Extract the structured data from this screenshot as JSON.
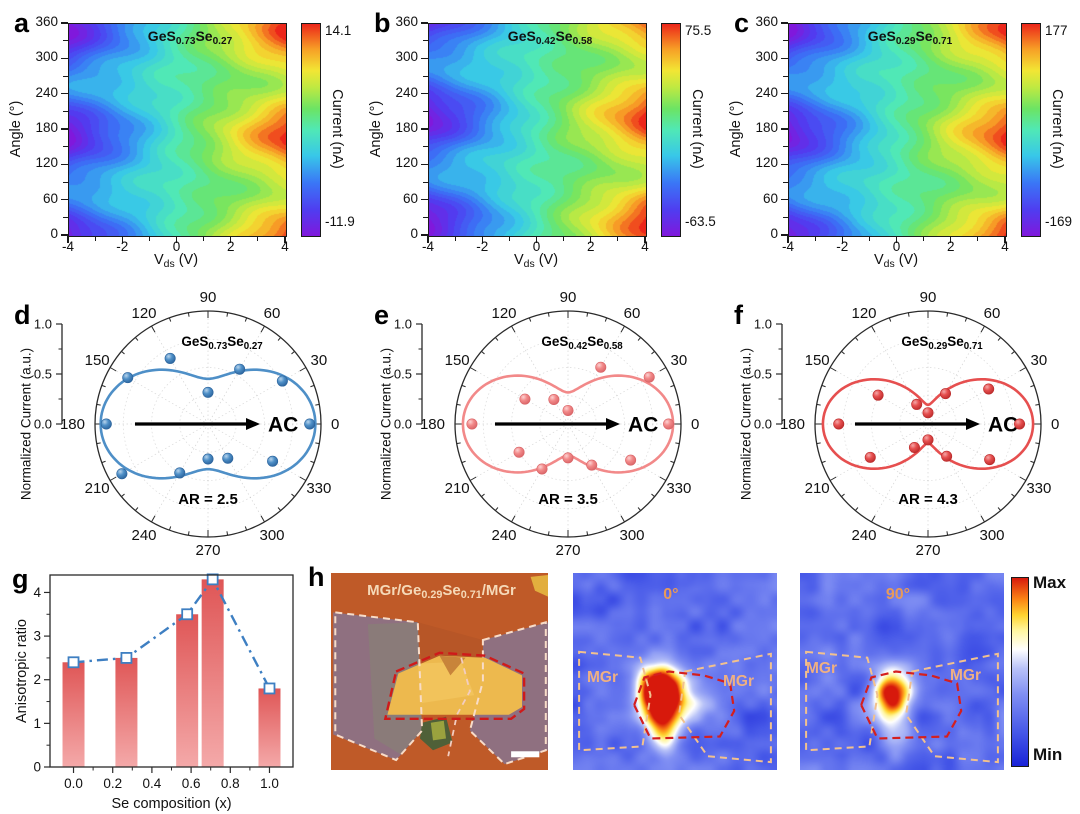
{
  "chart_data": [
    {
      "panel": "a",
      "type": "heatmap",
      "title_text": "GeS0.73Se0.27",
      "title_parts": [
        {
          "t": "GeS"
        },
        {
          "t": "0.73",
          "sub": true
        },
        {
          "t": "Se"
        },
        {
          "t": "0.27",
          "sub": true
        }
      ],
      "xlabel_parts": [
        {
          "t": "V"
        },
        {
          "t": "ds",
          "sub": true
        },
        {
          "t": " (V)"
        }
      ],
      "ylabel": "Angle (°)",
      "x_range": [
        -4,
        4
      ],
      "y_range": [
        0,
        360
      ],
      "x_ticks": [
        "-4",
        "-2",
        "0",
        "2",
        "4"
      ],
      "y_ticks": [
        "0",
        "60",
        "120",
        "180",
        "240",
        "300",
        "360"
      ],
      "colorbar": {
        "label": "Current (nA)",
        "max": "14.1",
        "min": "-11.9"
      },
      "lobe_phase_deg": -10
    },
    {
      "panel": "b",
      "type": "heatmap",
      "title_text": "GeS0.42Se0.58",
      "title_parts": [
        {
          "t": "GeS"
        },
        {
          "t": "0.42",
          "sub": true
        },
        {
          "t": "Se"
        },
        {
          "t": "0.58",
          "sub": true
        }
      ],
      "xlabel_parts": [
        {
          "t": "V"
        },
        {
          "t": "ds",
          "sub": true
        },
        {
          "t": " (V)"
        }
      ],
      "ylabel": "Angle (°)",
      "x_range": [
        -4,
        4
      ],
      "y_range": [
        0,
        360
      ],
      "x_ticks": [
        "-4",
        "-2",
        "0",
        "2",
        "4"
      ],
      "y_ticks": [
        "0",
        "60",
        "120",
        "180",
        "240",
        "300",
        "360"
      ],
      "colorbar": {
        "label": "Current (nA)",
        "max": "75.5",
        "min": "-63.5"
      },
      "lobe_phase_deg": 22
    },
    {
      "panel": "c",
      "type": "heatmap",
      "title_text": "GeS0.29Se0.71",
      "title_parts": [
        {
          "t": "GeS"
        },
        {
          "t": "0.29",
          "sub": true
        },
        {
          "t": "Se"
        },
        {
          "t": "0.71",
          "sub": true
        }
      ],
      "xlabel_parts": [
        {
          "t": "V"
        },
        {
          "t": "ds",
          "sub": true
        },
        {
          "t": " (V)"
        }
      ],
      "ylabel": "Angle (°)",
      "x_range": [
        -4,
        4
      ],
      "y_range": [
        0,
        360
      ],
      "x_ticks": [
        "-4",
        "-2",
        "0",
        "2",
        "4"
      ],
      "y_ticks": [
        "0",
        "60",
        "120",
        "180",
        "240",
        "300",
        "360"
      ],
      "colorbar": {
        "label": "Current (nA)",
        "max": "177",
        "min": "-169"
      },
      "lobe_phase_deg": -6
    },
    {
      "panel": "d",
      "type": "polar",
      "title_text": "GeS0.73Se0.27",
      "title_parts": [
        {
          "t": "GeS"
        },
        {
          "t": "0.73",
          "sub": true
        },
        {
          "t": "Se"
        },
        {
          "t": "0.27",
          "sub": true
        }
      ],
      "ar_label": "AR = 2.5",
      "ac_label": "AC",
      "r_axis_label": "Normalized Current (a.u.)",
      "r_tick_labels": [
        "0.0",
        "0.5",
        "1.0"
      ],
      "angle_tick_labels": [
        "0",
        "30",
        "60",
        "90",
        "120",
        "150",
        "180",
        "210",
        "240",
        "270",
        "300",
        "330"
      ],
      "color": "#4e8fc7",
      "color_dark": "#2b639c",
      "color_light": "#b8d4ec",
      "fit": {
        "r_min": 0.4,
        "r_max": 0.95
      },
      "points": [
        [
          0,
          0.9
        ],
        [
          30,
          0.76
        ],
        [
          60,
          0.56
        ],
        [
          90,
          0.28
        ],
        [
          120,
          0.67
        ],
        [
          150,
          0.82
        ],
        [
          180,
          0.9
        ],
        [
          210,
          0.88
        ],
        [
          240,
          0.5
        ],
        [
          270,
          0.31
        ],
        [
          300,
          0.35
        ],
        [
          330,
          0.66
        ]
      ]
    },
    {
      "panel": "e",
      "type": "polar",
      "title_text": "GeS0.42Se0.58",
      "title_parts": [
        {
          "t": "GeS"
        },
        {
          "t": "0.42",
          "sub": true
        },
        {
          "t": "Se"
        },
        {
          "t": "0.58",
          "sub": true
        }
      ],
      "ar_label": "AR = 3.5",
      "ac_label": "AC",
      "r_axis_label": "Normalized Current (a.u.)",
      "r_tick_labels": [
        "0.0",
        "0.5",
        "1.0"
      ],
      "angle_tick_labels": [
        "0",
        "30",
        "60",
        "90",
        "120",
        "150",
        "180",
        "210",
        "240",
        "270",
        "300",
        "330"
      ],
      "color": "#f28989",
      "color_dark": "#d96467",
      "color_light": "#fcd2d2",
      "fit": {
        "r_min": 0.28,
        "r_max": 0.93
      },
      "points": [
        [
          0,
          0.89
        ],
        [
          30,
          0.83
        ],
        [
          60,
          0.58
        ],
        [
          90,
          0.12
        ],
        [
          120,
          0.25
        ],
        [
          150,
          0.44
        ],
        [
          180,
          0.85
        ],
        [
          210,
          0.5
        ],
        [
          240,
          0.46
        ],
        [
          270,
          0.3
        ],
        [
          300,
          0.42
        ],
        [
          330,
          0.64
        ]
      ]
    },
    {
      "panel": "f",
      "type": "polar",
      "title_text": "GeS0.29Se0.71",
      "title_parts": [
        {
          "t": "GeS"
        },
        {
          "t": "0.29",
          "sub": true
        },
        {
          "t": "Se"
        },
        {
          "t": "0.71",
          "sub": true
        }
      ],
      "ar_label": "AR = 4.3",
      "ac_label": "AC",
      "r_axis_label": "Normalized Current (a.u.)",
      "r_tick_labels": [
        "0.0",
        "0.5",
        "1.0"
      ],
      "angle_tick_labels": [
        "0",
        "30",
        "60",
        "90",
        "120",
        "150",
        "180",
        "210",
        "240",
        "270",
        "300",
        "330"
      ],
      "color": "#e64f4f",
      "color_dark": "#bb2b2b",
      "color_light": "#f4a8a8",
      "fit": {
        "r_min": 0.17,
        "r_max": 0.93
      },
      "points": [
        [
          0,
          0.81
        ],
        [
          30,
          0.62
        ],
        [
          60,
          0.31
        ],
        [
          90,
          0.1
        ],
        [
          120,
          0.2
        ],
        [
          150,
          0.51
        ],
        [
          180,
          0.79
        ],
        [
          210,
          0.59
        ],
        [
          240,
          0.24
        ],
        [
          270,
          0.14
        ],
        [
          300,
          0.33
        ],
        [
          330,
          0.63
        ]
      ]
    },
    {
      "panel": "g",
      "type": "bar",
      "xlabel": "Se composition (x)",
      "ylabel": "Anisotropic ratio",
      "categories": [
        0.0,
        0.27,
        0.58,
        0.71,
        1.0
      ],
      "values": [
        2.4,
        2.5,
        3.5,
        4.3,
        1.8
      ],
      "line_values": [
        2.4,
        2.5,
        3.5,
        4.3,
        1.8
      ],
      "x_ticks": [
        "0.0",
        "0.2",
        "0.4",
        "0.6",
        "0.8",
        "1.0"
      ],
      "y_ticks": [
        "0",
        "1",
        "2",
        "3",
        "4"
      ],
      "xlim": [
        -0.12,
        1.12
      ],
      "ylim": [
        0,
        4.4
      ],
      "bar_color_top": "#df5656",
      "bar_color_bottom": "#f4a9a9",
      "line_color": "#3e7fc2",
      "line_style": "dash-dot",
      "marker": "open-square"
    }
  ],
  "panel_h": {
    "letter": "h",
    "optical_label_parts": [
      {
        "t": "MGr/Ge"
      },
      {
        "t": "0.29",
        "sub": true
      },
      {
        "t": "Se"
      },
      {
        "t": "0.71",
        "sub": true
      },
      {
        "t": "/MGr"
      }
    ],
    "optical_label_text": "MGr/Ge0.29Se0.71/MGr",
    "maps": [
      {
        "label": "0°",
        "left_label": "MGr",
        "right_label": "MGr",
        "peak": 1.05
      },
      {
        "label": "90°",
        "left_label": "MGr",
        "right_label": "MGr",
        "peak": 0.8
      }
    ],
    "colorbar": {
      "max_label": "Max",
      "min_label": "Min"
    }
  }
}
